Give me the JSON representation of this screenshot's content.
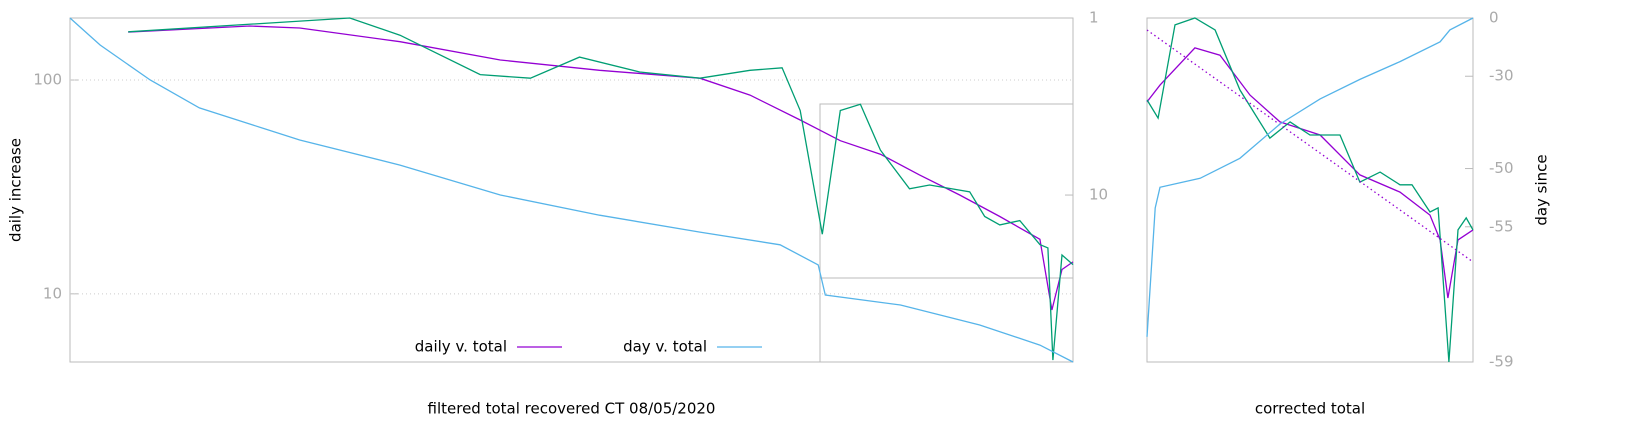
{
  "chart_data": [
    {
      "type": "line",
      "xlabel": "filtered total recovered CT 08/05/2020",
      "ylabel": "daily increase",
      "xlim": [
        0,
        100
      ],
      "ylim": [
        4.8,
        195
      ],
      "yscale": "log",
      "yticks": [
        10,
        100
      ],
      "grid": true,
      "y2lim": [
        87.7,
        1
      ],
      "y2scale": "log",
      "y2ticks": [
        1,
        10
      ],
      "legend": "bottom",
      "series": [
        {
          "name": "daily v. total",
          "color": "#9400d3",
          "x": [
            5.8,
            17.9,
            22.9,
            32.9,
            42.9,
            52.8,
            62.8,
            67.8,
            72.8,
            76.8,
            80.8,
            84.7,
            88.7,
            92.7,
            96.7,
            97.9,
            98.9,
            100
          ],
          "values": [
            167.5,
            179,
            175,
            151,
            124,
            111,
            102,
            85,
            65,
            52,
            45,
            36,
            29,
            23,
            18,
            8.4,
            13,
            14.1
          ]
        },
        {
          "color": "#009e73",
          "x": [
            5.8,
            27.9,
            32.9,
            40.9,
            45.9,
            50.8,
            56.8,
            62.8,
            67.8,
            71.0,
            72.8,
            75.0,
            76.8,
            78.8,
            80.8,
            83.7,
            85.7,
            89.7,
            91.2,
            92.7,
            94.7,
            96.7,
            97.5,
            98.0,
            98.9,
            100
          ],
          "values": [
            168,
            195,
            162,
            106,
            102,
            128,
            109,
            102,
            111,
            114,
            72,
            19,
            72,
            77,
            47,
            31,
            32.3,
            30,
            23,
            21,
            22,
            17,
            16.4,
            4.9,
            15.2,
            13.7
          ]
        },
        {
          "name": "day v. total",
          "color": "#56b4e9",
          "axis": "y2",
          "x": [
            0,
            3.0,
            8.0,
            12.9,
            22.9,
            32.9,
            42.9,
            52.8,
            62.8,
            70.8,
            74.6,
            75.3,
            82.8,
            90.7,
            96.7,
            100
          ],
          "values": [
            1,
            1.42,
            2.24,
            3.22,
            4.89,
            6.77,
            10,
            13,
            16.2,
            19.1,
            24.8,
            36.7,
            41.8,
            54.2,
            70.4,
            87.7
          ]
        }
      ]
    },
    {
      "type": "line",
      "xlabel": "corrected total",
      "y2label": "day since",
      "xlim": [
        0,
        100
      ],
      "ylim": [
        0,
        100
      ],
      "y2lim": [
        -59,
        0
      ],
      "y2scale": "log",
      "y2offset": 60,
      "y2ticks": [
        0,
        -30,
        -50,
        -55,
        -59
      ],
      "series": [
        {
          "color": "#9400d3",
          "x": [
            0,
            4.0,
            14.7,
            22.4,
            31.6,
            40.8,
            53.1,
            65.3,
            77.6,
            86.8,
            89.9,
            92.3,
            95.4,
            100
          ],
          "values": [
            75.6,
            80.5,
            91.3,
            89.2,
            77.6,
            69.8,
            66,
            54.4,
            49.4,
            42.7,
            35.5,
            18.6,
            35.5,
            38.4
          ]
        },
        {
          "color": "#009e73",
          "x": [
            0,
            3.4,
            8.6,
            14.7,
            20.9,
            28.5,
            37.7,
            43.9,
            50.0,
            59.2,
            65.3,
            71.5,
            77.6,
            81.3,
            86.8,
            89.3,
            92.6,
            95.4,
            97.9,
            100
          ],
          "values": [
            76.2,
            70.9,
            98,
            100,
            96.5,
            79.1,
            65.1,
            69.8,
            66,
            66,
            52.3,
            55.2,
            51.5,
            51.5,
            43.6,
            44.8,
            0,
            38.4,
            41.9,
            38.4
          ]
        },
        {
          "color": "#9400d3",
          "dash": true,
          "x": [
            0,
            100
          ],
          "values": [
            96.5,
            29.1
          ]
        },
        {
          "color": "#56b4e9",
          "axis": "y2",
          "x": [
            0,
            2.5,
            4.0,
            16.3,
            28.5,
            40.8,
            53.1,
            65.3,
            77.6,
            89.9,
            92.9,
            100
          ],
          "values": [
            -58.65,
            -53.75,
            -52,
            -51.1,
            -48.7,
            -43,
            -37.1,
            -31.1,
            -24.3,
            -14.8,
            -7.9,
            0
          ]
        }
      ]
    }
  ]
}
